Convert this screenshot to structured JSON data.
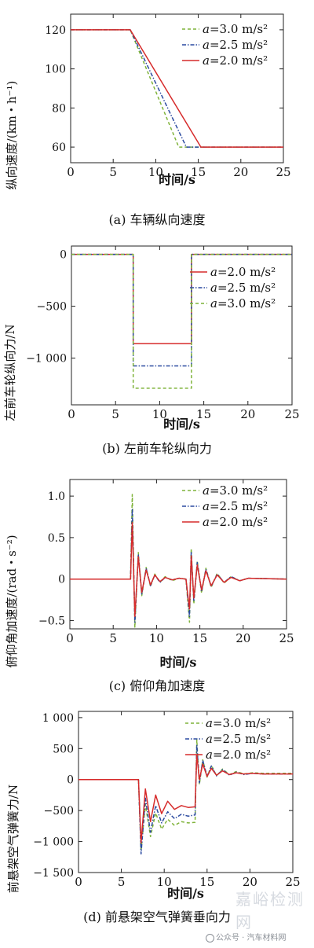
{
  "chart_data": [
    {
      "type": "line",
      "caption": "(a) 车辆纵向速度",
      "ylabel": "纵向速度/(km・h⁻¹)",
      "xlabel": "时间/s",
      "xlim": [
        0,
        25
      ],
      "ylim": [
        52,
        128
      ],
      "xticks": [
        0,
        5,
        10,
        15,
        20,
        25
      ],
      "yticks": [
        60,
        80,
        100,
        120
      ],
      "ytick_labels": [
        "60",
        "80",
        "100",
        "120"
      ],
      "legend_placement": "top-right",
      "series": [
        {
          "name": "a=3.0 m/s²",
          "prefix": "a",
          "rest": "=3.0 m/s²",
          "color": "#7fb33a",
          "dash": "4,3",
          "x": [
            0,
            7,
            12.7,
            25
          ],
          "y": [
            120,
            120,
            60,
            60
          ]
        },
        {
          "name": "a=2.5 m/s²",
          "prefix": "a",
          "rest": "=2.5 m/s²",
          "color": "#2b4aa0",
          "dash": "5,2,1.5,2",
          "x": [
            0,
            7,
            13.6,
            25
          ],
          "y": [
            120,
            120,
            60,
            60
          ]
        },
        {
          "name": "a=2.0 m/s²",
          "prefix": "a",
          "rest": "=2.0 m/s²",
          "color": "#d62b2b",
          "dash": "",
          "x": [
            0,
            7,
            15.3,
            25
          ],
          "y": [
            120,
            120,
            60,
            60
          ]
        }
      ]
    },
    {
      "type": "line",
      "caption": "(b) 左前车轮纵向力",
      "ylabel": "左前车轮纵向力/N",
      "xlabel": "时间/s",
      "xlim": [
        0,
        25
      ],
      "ylim": [
        -1450,
        80
      ],
      "xticks": [
        0,
        5,
        10,
        15,
        20,
        25
      ],
      "yticks": [
        -1000,
        -500,
        0
      ],
      "ytick_labels": [
        "−1 000",
        "−500",
        "0"
      ],
      "legend_placement": "right",
      "series": [
        {
          "name": "a=2.0 m/s²",
          "prefix": "a",
          "rest": "=2.0 m/s²",
          "color": "#d62b2b",
          "dash": "",
          "x": [
            0,
            7,
            7,
            13.6,
            13.6,
            25
          ],
          "y": [
            0,
            0,
            -860,
            -860,
            0,
            0
          ]
        },
        {
          "name": "a=2.5 m/s²",
          "prefix": "a",
          "rest": "=2.5 m/s²",
          "color": "#2b4aa0",
          "dash": "5,2,1.5,2",
          "x": [
            0,
            7,
            7,
            13.6,
            13.6,
            25
          ],
          "y": [
            0,
            0,
            -1075,
            -1075,
            0,
            0
          ]
        },
        {
          "name": "a=3.0 m/s²",
          "prefix": "a",
          "rest": "=3.0 m/s²",
          "color": "#7fb33a",
          "dash": "4,3",
          "x": [
            0,
            7,
            7,
            13.6,
            13.6,
            25
          ],
          "y": [
            0,
            0,
            -1290,
            -1290,
            0,
            0
          ]
        }
      ]
    },
    {
      "type": "line",
      "caption": "(c) 俯仰角加速度",
      "ylabel": "俯仰角加速度/(rad・s⁻²)",
      "xlabel": "时间/s",
      "xlim": [
        0,
        25
      ],
      "ylim": [
        -0.6,
        1.2
      ],
      "xticks": [
        0,
        5,
        10,
        15,
        20,
        25
      ],
      "yticks": [
        -0.5,
        0,
        0.5,
        1.0
      ],
      "ytick_labels": [
        "−0.5",
        "0",
        "0.5",
        "1.0"
      ],
      "legend_placement": "top-right",
      "series": [
        {
          "name": "a=3.0 m/s²",
          "prefix": "a",
          "rest": "=3.0 m/s²",
          "color": "#7fb33a",
          "dash": "4,3",
          "x": [
            0,
            7.0,
            7.2,
            7.5,
            7.9,
            8.3,
            8.8,
            9.3,
            9.8,
            10.4,
            11.0,
            11.8,
            12.6,
            13.4,
            13.8,
            14.0,
            14.3,
            14.7,
            15.2,
            15.7,
            16.3,
            17.0,
            17.8,
            18.6,
            19.6,
            20.6,
            25
          ],
          "y": [
            0,
            0,
            1.02,
            -0.58,
            0.32,
            -0.2,
            0.14,
            -0.09,
            0.06,
            -0.04,
            0.03,
            -0.02,
            0.01,
            0,
            -0.52,
            0.37,
            -0.3,
            0.22,
            -0.17,
            0.13,
            -0.1,
            0.07,
            -0.05,
            0.03,
            -0.02,
            0.01,
            0
          ]
        },
        {
          "name": "a=2.5 m/s²",
          "prefix": "a",
          "rest": "=2.5 m/s²",
          "color": "#2b4aa0",
          "dash": "5,2,1.5,2",
          "x": [
            0,
            7.0,
            7.2,
            7.5,
            7.9,
            8.3,
            8.8,
            9.3,
            9.8,
            10.4,
            11.0,
            11.8,
            12.6,
            13.4,
            13.8,
            14.0,
            14.3,
            14.7,
            15.2,
            15.7,
            16.3,
            17.0,
            17.8,
            18.6,
            19.6,
            20.6,
            25
          ],
          "y": [
            0,
            0,
            0.85,
            -0.52,
            0.3,
            -0.18,
            0.13,
            -0.08,
            0.05,
            -0.04,
            0.02,
            -0.01,
            0.01,
            0,
            -0.45,
            0.33,
            -0.27,
            0.2,
            -0.15,
            0.12,
            -0.09,
            0.06,
            -0.04,
            0.03,
            -0.02,
            0.01,
            0
          ]
        },
        {
          "name": "a=2.0 m/s²",
          "prefix": "a",
          "rest": "=2.0 m/s²",
          "color": "#d62b2b",
          "dash": "",
          "x": [
            0,
            7.0,
            7.2,
            7.5,
            7.9,
            8.3,
            8.8,
            9.3,
            9.8,
            10.4,
            11.0,
            11.8,
            12.6,
            13.4,
            13.8,
            14.0,
            14.3,
            14.7,
            15.2,
            15.7,
            16.3,
            17.0,
            17.8,
            18.6,
            19.6,
            20.6,
            25
          ],
          "y": [
            0,
            0,
            0.68,
            -0.45,
            0.27,
            -0.16,
            0.11,
            -0.07,
            0.05,
            -0.03,
            0.02,
            -0.01,
            0.01,
            0,
            -0.36,
            0.28,
            -0.23,
            0.17,
            -0.13,
            0.1,
            -0.08,
            0.05,
            -0.04,
            0.02,
            -0.02,
            0.01,
            0
          ]
        }
      ]
    },
    {
      "type": "line",
      "caption": "(d) 前悬架空气弹簧垂向力",
      "ylabel": "前悬架空气弹簧力/N",
      "xlabel": "时间/s",
      "xlim": [
        0,
        25
      ],
      "ylim": [
        -1500,
        1100
      ],
      "xticks": [
        0,
        5,
        10,
        15,
        20,
        25
      ],
      "yticks": [
        -1500,
        -1000,
        -500,
        0,
        500,
        1000
      ],
      "ytick_labels": [
        "−1 500",
        "−1 000",
        "−500",
        "0",
        "500",
        "1 000"
      ],
      "legend_placement": "top-right",
      "series": [
        {
          "name": "a=3.0 m/s²",
          "prefix": "a",
          "rest": "=3.0 m/s²",
          "color": "#7fb33a",
          "dash": "4,3",
          "x": [
            0,
            7.0,
            7.3,
            7.8,
            8.4,
            9.0,
            9.7,
            10.4,
            11.2,
            12.0,
            12.8,
            13.6,
            13.8,
            14.1,
            14.5,
            15.0,
            15.5,
            16.1,
            16.8,
            17.6,
            18.4,
            19.3,
            20.3,
            21.5,
            25
          ],
          "y": [
            0,
            0,
            -1150,
            -400,
            -920,
            -540,
            -800,
            -640,
            -740,
            -680,
            -700,
            -690,
            640,
            -80,
            320,
            40,
            230,
            60,
            170,
            80,
            130,
            90,
            110,
            100,
            100
          ]
        },
        {
          "name": "a=2.5 m/s²",
          "prefix": "a",
          "rest": "=2.5 m/s²",
          "color": "#2b4aa0",
          "dash": "5,2,1.5,2",
          "x": [
            0,
            7.0,
            7.3,
            7.8,
            8.4,
            9.0,
            9.7,
            10.4,
            11.2,
            12.0,
            12.8,
            13.6,
            13.8,
            14.1,
            14.5,
            15.0,
            15.5,
            16.1,
            16.8,
            17.6,
            18.4,
            19.3,
            20.3,
            21.5,
            25
          ],
          "y": [
            0,
            0,
            -1200,
            -300,
            -850,
            -420,
            -700,
            -520,
            -630,
            -560,
            -590,
            -570,
            560,
            -50,
            310,
            50,
            220,
            60,
            160,
            70,
            120,
            80,
            100,
            90,
            90
          ]
        },
        {
          "name": "a=2.0 m/s²",
          "prefix": "a",
          "rest": "=2.0 m/s²",
          "color": "#d62b2b",
          "dash": "",
          "x": [
            0,
            7.0,
            7.3,
            7.8,
            8.4,
            9.0,
            9.7,
            10.4,
            11.2,
            12.0,
            12.8,
            13.6,
            13.8,
            14.1,
            14.5,
            15.0,
            15.5,
            16.1,
            16.8,
            17.6,
            18.4,
            19.3,
            20.3,
            21.5,
            25
          ],
          "y": [
            0,
            0,
            -1020,
            -150,
            -680,
            -250,
            -550,
            -350,
            -480,
            -420,
            -450,
            -440,
            400,
            0,
            250,
            50,
            180,
            70,
            140,
            80,
            110,
            90,
            100,
            90,
            90
          ]
        }
      ]
    }
  ],
  "watermark": {
    "line1": "嘉峪检测网",
    "line2": "公众号 · 汽车材料网"
  }
}
